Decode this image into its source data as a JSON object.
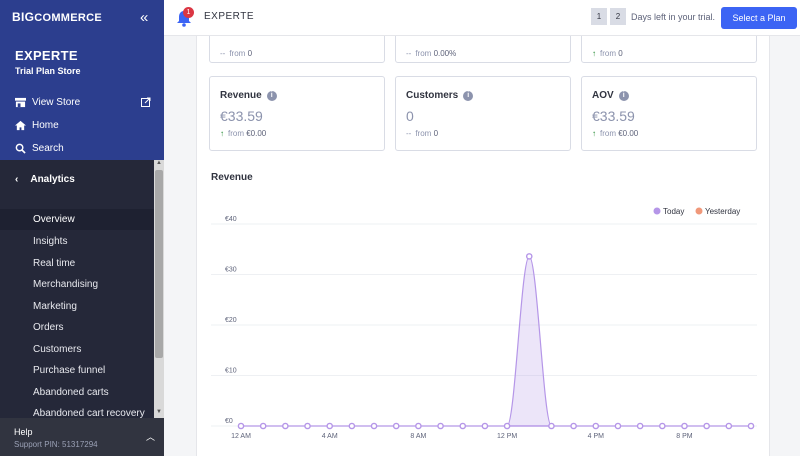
{
  "brand": {
    "logo_prefix": "BIG",
    "logo_suffix": "COMMERCE"
  },
  "sidebar": {
    "store_name": "EXPERTE",
    "store_plan": "Trial Plan Store",
    "links": [
      {
        "label": "View Store",
        "icon": "storefront-icon"
      },
      {
        "label": "Home",
        "icon": "home-icon"
      },
      {
        "label": "Search",
        "icon": "search-icon"
      }
    ],
    "section_title": "Analytics",
    "items": [
      {
        "label": "Overview",
        "active": true
      },
      {
        "label": "Insights"
      },
      {
        "label": "Real time"
      },
      {
        "label": "Merchandising"
      },
      {
        "label": "Marketing"
      },
      {
        "label": "Orders"
      },
      {
        "label": "Customers"
      },
      {
        "label": "Purchase funnel"
      },
      {
        "label": "Abandoned carts"
      },
      {
        "label": "Abandoned cart recovery"
      }
    ],
    "help_title": "Help",
    "support_pin": "Support PIN: 51317294"
  },
  "header": {
    "notification_count": "1",
    "store_name": "EXPERTE",
    "trial_days": [
      "1",
      "2"
    ],
    "trial_text": "Days left in your trial.",
    "select_plan": "Select a Plan"
  },
  "top_cards": [
    {
      "delta_prefix": "--",
      "from_text": "from",
      "from_value": "0",
      "trend": "none"
    },
    {
      "delta_prefix": "--",
      "from_text": "from",
      "from_value": "0.00%",
      "trend": "none"
    },
    {
      "delta_prefix": "↑",
      "from_text": "from",
      "from_value": "0",
      "trend": "up"
    }
  ],
  "cards": [
    {
      "title": "Revenue",
      "value": "€33.59",
      "delta_prefix": "↑",
      "from_text": "from",
      "from_value": "€0.00",
      "trend": "up"
    },
    {
      "title": "Customers",
      "value": "0",
      "delta_prefix": "--",
      "from_text": "from",
      "from_value": "0",
      "trend": "none"
    },
    {
      "title": "AOV",
      "value": "€33.59",
      "delta_prefix": "↑",
      "from_text": "from",
      "from_value": "€0.00",
      "trend": "up"
    }
  ],
  "revenue_title": "Revenue",
  "colors": {
    "today": "#b596e8",
    "yesterday": "#f0987a",
    "accent": "#3c64f4",
    "sidebar_top": "#2c3e8e"
  },
  "chart_data": {
    "type": "area",
    "x": [
      "12 AM",
      "1 AM",
      "2 AM",
      "3 AM",
      "4 AM",
      "5 AM",
      "6 AM",
      "7 AM",
      "8 AM",
      "9 AM",
      "10 AM",
      "11 AM",
      "12 PM",
      "1 PM",
      "2 PM",
      "3 PM",
      "4 PM",
      "5 PM",
      "6 PM",
      "7 PM",
      "8 PM",
      "9 PM",
      "10 PM",
      "11 PM"
    ],
    "x_tick_labels": [
      "12 AM",
      "4 AM",
      "8 AM",
      "12 PM",
      "4 PM",
      "8 PM"
    ],
    "series": [
      {
        "name": "Today",
        "values": [
          0,
          0,
          0,
          0,
          0,
          0,
          0,
          0,
          0,
          0,
          0,
          0,
          0,
          33.59,
          0,
          0,
          0,
          0,
          0,
          0,
          0,
          0,
          0,
          0
        ]
      },
      {
        "name": "Yesterday",
        "values": [
          0,
          0,
          0,
          0,
          0,
          0,
          0,
          0,
          0,
          0,
          0,
          0,
          0,
          0,
          0,
          0,
          0,
          0,
          0,
          0,
          0,
          0,
          0,
          0
        ]
      }
    ],
    "y_ticks": [
      "€0",
      "€10",
      "€20",
      "€30",
      "€40"
    ],
    "ylim": [
      0,
      40
    ],
    "legend_position": "top-right",
    "grid": true
  }
}
